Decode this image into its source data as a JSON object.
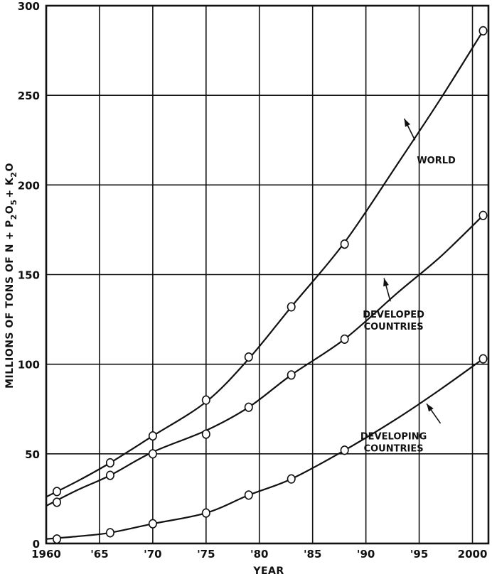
{
  "chart_data": {
    "type": "line",
    "title": "",
    "xlabel": "YEAR",
    "ylabel_parts": {
      "prefix": "MILLIONS OF TONS OF N + P",
      "sub1": "2",
      "mid1": "O",
      "sub2": "5",
      "mid2": "+ K",
      "sub3": "2",
      "suffix": "O"
    },
    "xlim": [
      1960,
      2001.5
    ],
    "ylim": [
      0,
      300
    ],
    "grid": true,
    "x_ticks": [
      1960,
      1965,
      1970,
      1975,
      1980,
      1985,
      1990,
      1995,
      2000
    ],
    "x_tick_labels": [
      "1960",
      "'65",
      "'70",
      "'75",
      "'80",
      "'85",
      "'90",
      "'95",
      "2000"
    ],
    "y_ticks": [
      0,
      50,
      100,
      150,
      200,
      250,
      300
    ],
    "y_tick_labels": [
      "0",
      "50",
      "100",
      "150",
      "200",
      "250",
      "300"
    ],
    "series": [
      {
        "name": "WORLD",
        "points": [
          [
            1961,
            29
          ],
          [
            1966,
            45
          ],
          [
            1970,
            60
          ],
          [
            1975,
            80
          ],
          [
            1979,
            104
          ],
          [
            1983,
            132
          ],
          [
            1988,
            167
          ],
          [
            2001,
            286
          ]
        ],
        "curve": [
          [
            1960,
            26
          ],
          [
            1963,
            35
          ],
          [
            1966,
            45
          ],
          [
            1970,
            60
          ],
          [
            1975,
            79
          ],
          [
            1979,
            103
          ],
          [
            1983,
            132
          ],
          [
            1988,
            168
          ],
          [
            1993,
            212
          ],
          [
            1997,
            248
          ],
          [
            2001,
            286
          ]
        ]
      },
      {
        "name": "DEVELOPED COUNTRIES",
        "points": [
          [
            1961,
            23
          ],
          [
            1966,
            38
          ],
          [
            1970,
            50
          ],
          [
            1975,
            61
          ],
          [
            1979,
            76
          ],
          [
            1983,
            94
          ],
          [
            1988,
            114
          ],
          [
            2001,
            183
          ]
        ],
        "curve": [
          [
            1960,
            21
          ],
          [
            1963,
            30
          ],
          [
            1966,
            38
          ],
          [
            1970,
            51
          ],
          [
            1975,
            63
          ],
          [
            1979,
            76
          ],
          [
            1983,
            94
          ],
          [
            1988,
            114
          ],
          [
            1993,
            140
          ],
          [
            1997,
            160
          ],
          [
            2001,
            183
          ]
        ]
      },
      {
        "name": "DEVELOPING COUNTRIES",
        "points": [
          [
            1961,
            2.5
          ],
          [
            1966,
            6
          ],
          [
            1970,
            11
          ],
          [
            1975,
            17
          ],
          [
            1979,
            27
          ],
          [
            1983,
            36
          ],
          [
            1988,
            52
          ],
          [
            2001,
            103
          ]
        ],
        "curve": [
          [
            1960,
            2.5
          ],
          [
            1963,
            4
          ],
          [
            1966,
            6
          ],
          [
            1970,
            11
          ],
          [
            1975,
            17
          ],
          [
            1979,
            27
          ],
          [
            1983,
            36
          ],
          [
            1988,
            52
          ],
          [
            1993,
            70
          ],
          [
            1997,
            86
          ],
          [
            2001,
            103
          ]
        ]
      }
    ],
    "annotations": [
      {
        "series": "WORLD",
        "lines": [
          "WORLD"
        ],
        "text_at": [
          1996.6,
          212
        ],
        "arrow_from": [
          1994.6,
          225
        ],
        "arrow_to": [
          1993.6,
          237
        ]
      },
      {
        "series": "DEVELOPED COUNTRIES",
        "lines": [
          "DEVELOPED",
          "COUNTRIES"
        ],
        "text_at": [
          1992.6,
          126
        ],
        "arrow_from": [
          1992.3,
          135
        ],
        "arrow_to": [
          1991.7,
          148
        ]
      },
      {
        "series": "DEVELOPING COUNTRIES",
        "lines": [
          "DEVELOPING",
          "COUNTRIES"
        ],
        "text_at": [
          1992.6,
          58
        ],
        "arrow_from": [
          1997.0,
          67
        ],
        "arrow_to": [
          1995.7,
          78
        ]
      }
    ]
  }
}
